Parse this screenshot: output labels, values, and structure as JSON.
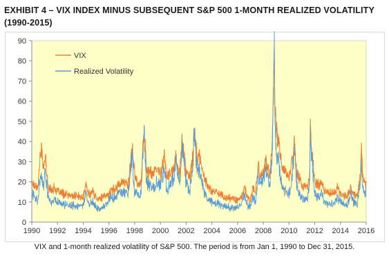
{
  "title": "EXHIBIT 4 – VIX INDEX MINUS SUBSEQUENT S&P 500 1-MONTH REALIZED VOLATILITY (1990-2015)",
  "caption": "VIX and 1-month realized volatility of S&P 500. The period is from Jan 1, 1990 to Dec 31, 2015.",
  "chart_data": {
    "type": "line",
    "title": "",
    "xlabel": "",
    "ylabel": "",
    "xlim": [
      1990,
      2016
    ],
    "ylim": [
      0,
      90
    ],
    "x_ticks": [
      1990,
      1992,
      1994,
      1996,
      1998,
      2000,
      2002,
      2004,
      2006,
      2008,
      2010,
      2012,
      2014,
      2016
    ],
    "y_ticks": [
      0,
      10,
      20,
      30,
      40,
      50,
      60,
      70,
      80,
      90
    ],
    "grid": false,
    "legend_position": "top-left",
    "plot_background": "#ffffc8",
    "series": [
      {
        "name": "VIX",
        "color": "#ed7d31",
        "x": [
          1990.0,
          1990.25,
          1990.5,
          1990.6,
          1990.75,
          1990.85,
          1991.0,
          1991.05,
          1991.25,
          1991.5,
          1991.75,
          1992.0,
          1992.5,
          1993.0,
          1993.5,
          1994.0,
          1994.2,
          1994.4,
          1994.75,
          1995.0,
          1995.5,
          1996.0,
          1996.5,
          1997.0,
          1997.5,
          1997.83,
          1997.9,
          1998.0,
          1998.25,
          1998.5,
          1998.6,
          1998.75,
          1998.9,
          1999.0,
          1999.5,
          1999.75,
          2000.0,
          2000.3,
          2000.5,
          2000.75,
          2001.0,
          2001.2,
          2001.5,
          2001.7,
          2001.9,
          2002.0,
          2002.3,
          2002.55,
          2002.6,
          2002.75,
          2002.9,
          2003.0,
          2003.2,
          2003.4,
          2003.75,
          2004.0,
          2004.5,
          2005.0,
          2005.5,
          2006.0,
          2006.4,
          2006.5,
          2006.75,
          2007.0,
          2007.2,
          2007.4,
          2007.6,
          2007.8,
          2008.0,
          2008.2,
          2008.5,
          2008.7,
          2008.8,
          2008.85,
          2008.9,
          2009.0,
          2009.2,
          2009.4,
          2009.6,
          2009.8,
          2010.0,
          2010.35,
          2010.4,
          2010.6,
          2010.8,
          2011.0,
          2011.4,
          2011.6,
          2011.65,
          2011.75,
          2011.9,
          2012.0,
          2012.4,
          2012.5,
          2012.75,
          2013.0,
          2013.5,
          2013.75,
          2014.0,
          2014.5,
          2014.8,
          2015.0,
          2015.3,
          2015.55,
          2015.63,
          2015.7,
          2015.8,
          2015.99
        ],
        "y": [
          20,
          18,
          18,
          30,
          36,
          30,
          28,
          33,
          18,
          16,
          17,
          15,
          14,
          13,
          13,
          12,
          19,
          14,
          15,
          12,
          12,
          14,
          17,
          20,
          19,
          38,
          30,
          23,
          19,
          20,
          34,
          45,
          28,
          25,
          24,
          26,
          24,
          33,
          22,
          24,
          25,
          33,
          23,
          43,
          30,
          24,
          22,
          34,
          44,
          40,
          30,
          33,
          28,
          22,
          17,
          15,
          15,
          12,
          12,
          11,
          13,
          18,
          12,
          11,
          17,
          15,
          28,
          22,
          25,
          30,
          22,
          40,
          75,
          85,
          60,
          45,
          40,
          30,
          25,
          24,
          22,
          35,
          42,
          25,
          22,
          18,
          17,
          22,
          48,
          38,
          27,
          20,
          18,
          20,
          16,
          15,
          14,
          17,
          14,
          13,
          17,
          14,
          13,
          24,
          41,
          25,
          20,
          19
        ]
      },
      {
        "name": "Realized Volatility",
        "color": "#5b9bd5",
        "x": [
          1990.0,
          1990.25,
          1990.5,
          1990.6,
          1990.75,
          1990.85,
          1991.0,
          1991.05,
          1991.25,
          1991.5,
          1991.75,
          1992.0,
          1992.5,
          1993.0,
          1993.5,
          1994.0,
          1994.2,
          1994.4,
          1994.75,
          1995.0,
          1995.5,
          1996.0,
          1996.5,
          1997.0,
          1997.5,
          1997.83,
          1997.9,
          1998.0,
          1998.25,
          1998.5,
          1998.6,
          1998.75,
          1998.9,
          1999.0,
          1999.5,
          1999.75,
          2000.0,
          2000.3,
          2000.5,
          2000.75,
          2001.0,
          2001.2,
          2001.5,
          2001.7,
          2001.9,
          2002.0,
          2002.3,
          2002.55,
          2002.6,
          2002.75,
          2002.9,
          2003.0,
          2003.2,
          2003.4,
          2003.75,
          2004.0,
          2004.5,
          2005.0,
          2005.5,
          2006.0,
          2006.4,
          2006.5,
          2006.75,
          2007.0,
          2007.2,
          2007.4,
          2007.6,
          2007.8,
          2008.0,
          2008.2,
          2008.5,
          2008.7,
          2008.8,
          2008.85,
          2008.9,
          2009.0,
          2009.2,
          2009.4,
          2009.6,
          2009.8,
          2010.0,
          2010.35,
          2010.4,
          2010.6,
          2010.8,
          2011.0,
          2011.4,
          2011.6,
          2011.65,
          2011.75,
          2011.9,
          2012.0,
          2012.4,
          2012.5,
          2012.75,
          2013.0,
          2013.5,
          2013.75,
          2014.0,
          2014.5,
          2014.8,
          2015.0,
          2015.3,
          2015.55,
          2015.63,
          2015.7,
          2015.8,
          2015.99
        ],
        "y": [
          15,
          12,
          11,
          22,
          24,
          18,
          22,
          26,
          13,
          10,
          11,
          10,
          9,
          8,
          8,
          8,
          14,
          9,
          10,
          7,
          7,
          11,
          13,
          15,
          14,
          36,
          20,
          15,
          13,
          14,
          30,
          44,
          22,
          19,
          17,
          20,
          18,
          27,
          15,
          19,
          22,
          30,
          18,
          38,
          25,
          19,
          16,
          30,
          46,
          33,
          24,
          26,
          20,
          15,
          11,
          10,
          9,
          8,
          7,
          7,
          10,
          14,
          8,
          8,
          13,
          10,
          24,
          18,
          22,
          26,
          18,
          35,
          70,
          84,
          55,
          35,
          30,
          20,
          16,
          15,
          13,
          30,
          38,
          18,
          15,
          12,
          11,
          18,
          45,
          35,
          20,
          14,
          12,
          15,
          10,
          9,
          9,
          12,
          10,
          8,
          14,
          10,
          8,
          20,
          31,
          20,
          14,
          15
        ]
      }
    ]
  }
}
